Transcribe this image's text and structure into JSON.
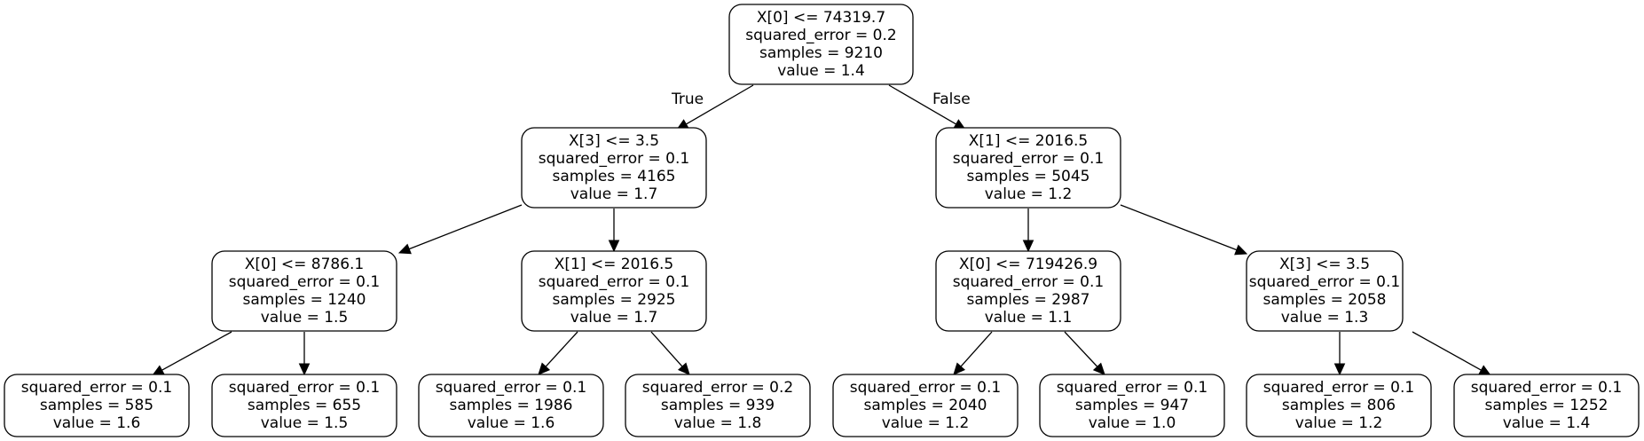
{
  "tree": {
    "nodes": [
      {
        "id": "n0",
        "lines": [
          "X[0] <= 74319.7",
          "squared_error = 0.2",
          "samples = 9210",
          "value = 1.4"
        ]
      },
      {
        "id": "n1",
        "lines": [
          "X[3] <= 3.5",
          "squared_error = 0.1",
          "samples = 4165",
          "value = 1.7"
        ]
      },
      {
        "id": "n2",
        "lines": [
          "X[1] <= 2016.5",
          "squared_error = 0.1",
          "samples = 5045",
          "value = 1.2"
        ]
      },
      {
        "id": "n3",
        "lines": [
          "X[0] <= 8786.1",
          "squared_error = 0.1",
          "samples = 1240",
          "value = 1.5"
        ]
      },
      {
        "id": "n4",
        "lines": [
          "X[1] <= 2016.5",
          "squared_error = 0.1",
          "samples = 2925",
          "value = 1.7"
        ]
      },
      {
        "id": "n5",
        "lines": [
          "X[0] <= 719426.9",
          "squared_error = 0.1",
          "samples = 2987",
          "value = 1.1"
        ]
      },
      {
        "id": "n6",
        "lines": [
          "X[3] <= 3.5",
          "squared_error = 0.1",
          "samples = 2058",
          "value = 1.3"
        ]
      },
      {
        "id": "n7",
        "lines": [
          "squared_error = 0.1",
          "samples = 585",
          "value = 1.6"
        ]
      },
      {
        "id": "n8",
        "lines": [
          "squared_error = 0.1",
          "samples = 655",
          "value = 1.5"
        ]
      },
      {
        "id": "n9",
        "lines": [
          "squared_error = 0.1",
          "samples = 1986",
          "value = 1.6"
        ]
      },
      {
        "id": "n10",
        "lines": [
          "squared_error = 0.2",
          "samples = 939",
          "value = 1.8"
        ]
      },
      {
        "id": "n11",
        "lines": [
          "squared_error = 0.1",
          "samples = 2040",
          "value = 1.2"
        ]
      },
      {
        "id": "n12",
        "lines": [
          "squared_error = 0.1",
          "samples = 947",
          "value = 1.0"
        ]
      },
      {
        "id": "n13",
        "lines": [
          "squared_error = 0.1",
          "samples = 806",
          "value = 1.2"
        ]
      },
      {
        "id": "n14",
        "lines": [
          "squared_error = 0.1",
          "samples = 1252",
          "value = 1.4"
        ]
      }
    ],
    "edges": [
      {
        "from": "n0",
        "to": "n1",
        "label": "True"
      },
      {
        "from": "n0",
        "to": "n2",
        "label": "False"
      },
      {
        "from": "n1",
        "to": "n3"
      },
      {
        "from": "n1",
        "to": "n4"
      },
      {
        "from": "n2",
        "to": "n5"
      },
      {
        "from": "n2",
        "to": "n6"
      },
      {
        "from": "n3",
        "to": "n7"
      },
      {
        "from": "n3",
        "to": "n8"
      },
      {
        "from": "n4",
        "to": "n9"
      },
      {
        "from": "n4",
        "to": "n10"
      },
      {
        "from": "n5",
        "to": "n11"
      },
      {
        "from": "n5",
        "to": "n12"
      },
      {
        "from": "n6",
        "to": "n13"
      },
      {
        "from": "n6",
        "to": "n14"
      }
    ]
  }
}
